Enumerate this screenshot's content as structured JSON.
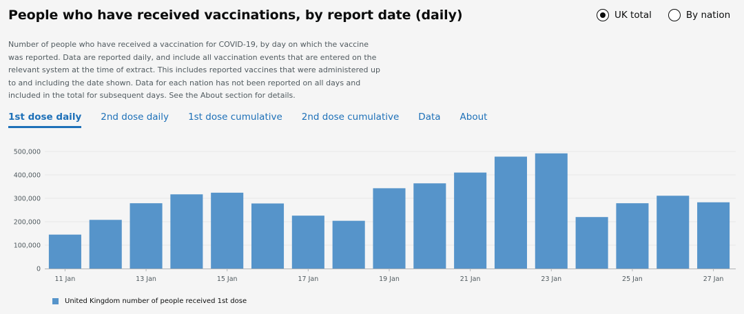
{
  "header": {
    "title": "People who have received vaccinations, by report date (daily)"
  },
  "view_toggle": {
    "options": [
      {
        "label": "UK total",
        "selected": true
      },
      {
        "label": "By nation",
        "selected": false
      }
    ]
  },
  "description": "Number of people who have received a vaccination for COVID-19, by day on which the vaccine was reported. Data are reported daily, and include all vaccination events that are entered on the relevant system at the time of extract. This includes reported vaccines that were administered up to and including the date shown. Data for each nation has not been reported on all days and included in the total for subsequent days. See the About section for details.",
  "tabs": [
    {
      "label": "1st dose daily",
      "active": true
    },
    {
      "label": "2nd dose daily",
      "active": false
    },
    {
      "label": "1st dose cumulative",
      "active": false
    },
    {
      "label": "2nd dose cumulative",
      "active": false
    },
    {
      "label": "Data",
      "active": false
    },
    {
      "label": "About",
      "active": false
    }
  ],
  "chart_data": {
    "type": "bar",
    "categories": [
      "11 Jan",
      "12 Jan",
      "13 Jan",
      "14 Jan",
      "15 Jan",
      "16 Jan",
      "17 Jan",
      "18 Jan",
      "19 Jan",
      "20 Jan",
      "21 Jan",
      "22 Jan",
      "23 Jan",
      "24 Jan",
      "25 Jan",
      "26 Jan",
      "27 Jan"
    ],
    "tick_labels": [
      "11 Jan",
      "13 Jan",
      "15 Jan",
      "17 Jan",
      "19 Jan",
      "21 Jan",
      "23 Jan",
      "25 Jan",
      "27 Jan"
    ],
    "series": [
      {
        "name": "United Kingdom number of people received 1st dose",
        "color": "#5694ca",
        "values": [
          145000,
          208000,
          279000,
          317000,
          324000,
          278000,
          226000,
          204000,
          343000,
          364000,
          410000,
          478000,
          492000,
          220000,
          279000,
          311000,
          283000
        ]
      }
    ],
    "ylim": [
      0,
      500000
    ],
    "yticks": [
      0,
      100000,
      200000,
      300000,
      400000,
      500000
    ],
    "ytick_labels": [
      "0",
      "100,000",
      "200,000",
      "300,000",
      "400,000",
      "500,000"
    ],
    "grid": true,
    "legend_position": "bottom-left"
  }
}
